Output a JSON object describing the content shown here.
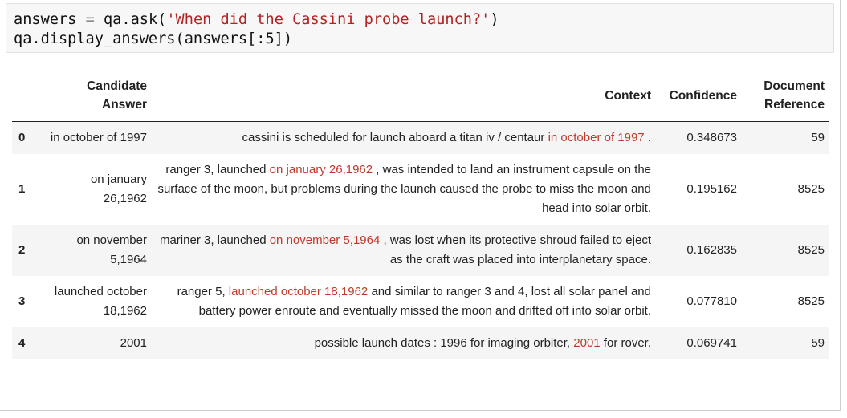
{
  "code": {
    "line1": {
      "var": "answers",
      "op": "=",
      "call": "qa.ask(",
      "string": "'When did the Cassini probe launch?'",
      "close": ")"
    },
    "line2": "qa.display_answers(answers[:5])"
  },
  "table": {
    "headers": {
      "candidate_1": "Candidate",
      "candidate_2": "Answer",
      "context": "Context",
      "confidence": "Confidence",
      "doc_1": "Document",
      "doc_2": "Reference"
    },
    "rows": [
      {
        "index": "0",
        "candidate": "in october of 1997",
        "context_pre": "cassini is scheduled for launch aboard a titan iv / centaur ",
        "context_hl": "in october of 1997",
        "context_post": " .",
        "confidence": "0.348673",
        "reference": "59"
      },
      {
        "index": "1",
        "candidate": "on january 26,1962",
        "context_pre": "ranger 3, launched ",
        "context_hl": "on january 26,1962",
        "context_post": " , was intended to land an instrument capsule on the surface of the moon, but problems during the launch caused the probe to miss the moon and head into solar orbit.",
        "confidence": "0.195162",
        "reference": "8525"
      },
      {
        "index": "2",
        "candidate": "on november 5,1964",
        "context_pre": "mariner 3, launched ",
        "context_hl": "on november 5,1964",
        "context_post": " , was lost when its protective shroud failed to eject as the craft was placed into interplanetary space.",
        "confidence": "0.162835",
        "reference": "8525"
      },
      {
        "index": "3",
        "candidate": "launched october 18,1962",
        "context_pre": "ranger 5, ",
        "context_hl": "launched october 18,1962",
        "context_post": " and similar to ranger 3 and 4, lost all solar panel and battery power enroute and eventually missed the moon and drifted off into solar orbit.",
        "confidence": "0.077810",
        "reference": "8525"
      },
      {
        "index": "4",
        "candidate": "2001",
        "context_pre": "possible launch dates : 1996 for imaging orbiter, ",
        "context_hl": "2001",
        "context_post": " for rover.",
        "confidence": "0.069741",
        "reference": "59"
      }
    ]
  },
  "colors": {
    "highlight": "#c0392b",
    "string": "#b22222",
    "zebra": "#f5f5f5"
  }
}
